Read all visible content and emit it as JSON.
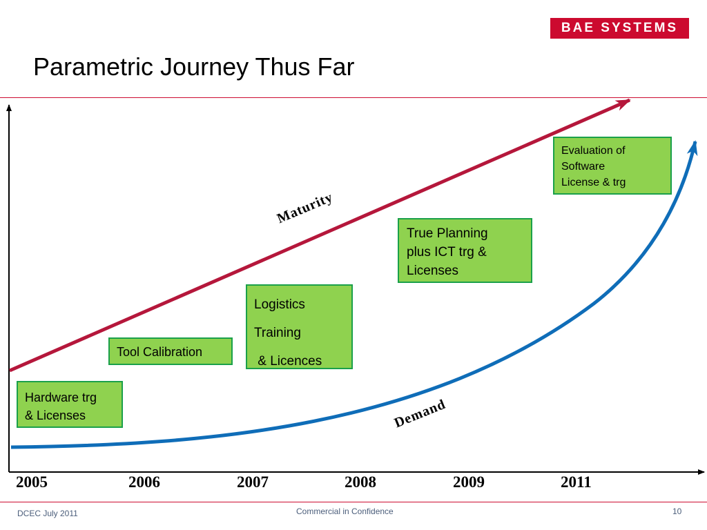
{
  "brand": {
    "logo_text": "BAE SYSTEMS",
    "color": "#cc0a2f"
  },
  "slide": {
    "title": "Parametric Journey Thus Far"
  },
  "diagram": {
    "maturity_label": "Maturity",
    "demand_label": "Demand",
    "maturity_color": "#b5173b",
    "demand_color": "#0f6db8",
    "box_fill": "#8fd24f",
    "box_border": "#1aa04a",
    "years": [
      "2005",
      "2006",
      "2007",
      "2008",
      "2009",
      "2011"
    ],
    "boxes": [
      {
        "lines": [
          "Hardware trg",
          "& Licenses"
        ]
      },
      {
        "lines": [
          "Tool Calibration"
        ]
      },
      {
        "lines": [
          "Logistics",
          "Training",
          " & Licences"
        ]
      },
      {
        "lines": [
          "True Planning",
          "plus ICT trg &",
          "Licenses"
        ]
      },
      {
        "lines": [
          "Evaluation of",
          "Software",
          "License & trg"
        ]
      }
    ]
  },
  "footer": {
    "left": "DCEC July 2011",
    "center": "Commercial in Confidence",
    "page_number": "10"
  }
}
